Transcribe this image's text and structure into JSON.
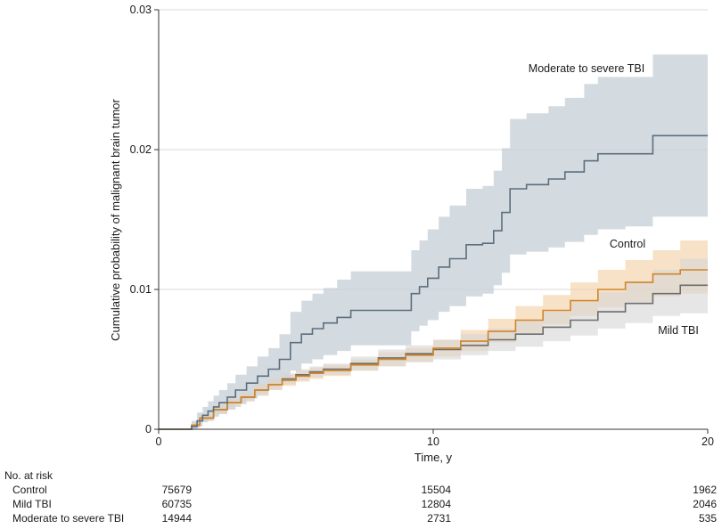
{
  "chart_data": {
    "type": "line",
    "title": "",
    "xlabel": "Time, y",
    "ylabel": "Cumulative probability of malignant brain tumor",
    "xlim": [
      0,
      20
    ],
    "ylim": [
      0,
      0.03
    ],
    "xticks": [
      0,
      10,
      20
    ],
    "xtick_labels": [
      "0",
      "10",
      "20"
    ],
    "yticks": [
      0,
      0.01,
      0.02,
      0.03
    ],
    "ytick_labels": [
      "0",
      "0.01",
      "0.02",
      "0.03"
    ],
    "grid": "horizontal",
    "legend": "direct labels",
    "series": [
      {
        "name": "Moderate to severe TBI",
        "color": "#5b6e7c",
        "band_color": "#c6cfd5",
        "x": [
          0,
          1,
          1.2,
          1.4,
          1.6,
          1.8,
          2.0,
          2.2,
          2.5,
          2.8,
          3.2,
          3.6,
          4.0,
          4.4,
          4.8,
          5.2,
          5.6,
          6.0,
          6.5,
          7.0,
          8.0,
          9.2,
          9.5,
          9.8,
          10.2,
          10.6,
          11.2,
          11.8,
          12.2,
          12.5,
          12.8,
          13.4,
          14.2,
          14.8,
          15.5,
          16.0,
          17.0,
          18.0,
          19.0,
          20
        ],
        "y": [
          0,
          0,
          0.0002,
          0.0006,
          0.001,
          0.0013,
          0.0016,
          0.0019,
          0.0023,
          0.0028,
          0.0033,
          0.0038,
          0.0043,
          0.005,
          0.0062,
          0.0068,
          0.0072,
          0.0076,
          0.008,
          0.0085,
          0.0085,
          0.0097,
          0.0102,
          0.0108,
          0.0116,
          0.0122,
          0.0132,
          0.0133,
          0.0142,
          0.0155,
          0.0172,
          0.0175,
          0.0179,
          0.0184,
          0.0192,
          0.0197,
          0.0197,
          0.021,
          0.021,
          0.021
        ],
        "lower": [
          0,
          0,
          0,
          0.0002,
          0.0005,
          0.0007,
          0.0009,
          0.0011,
          0.0014,
          0.0018,
          0.0022,
          0.0026,
          0.003,
          0.0034,
          0.0042,
          0.0047,
          0.005,
          0.0053,
          0.0056,
          0.006,
          0.006,
          0.007,
          0.0074,
          0.0078,
          0.0084,
          0.0088,
          0.0095,
          0.0097,
          0.0103,
          0.0112,
          0.0125,
          0.0127,
          0.013,
          0.0134,
          0.0139,
          0.0143,
          0.0145,
          0.0152,
          0.0152,
          0.0152
        ],
        "upper": [
          0,
          0,
          0.0006,
          0.0012,
          0.0016,
          0.002,
          0.0024,
          0.0028,
          0.0033,
          0.0039,
          0.0045,
          0.0052,
          0.0058,
          0.0068,
          0.0084,
          0.0092,
          0.0097,
          0.0101,
          0.0107,
          0.0113,
          0.0113,
          0.0128,
          0.0135,
          0.0143,
          0.0152,
          0.016,
          0.0172,
          0.0174,
          0.0185,
          0.0201,
          0.0222,
          0.0226,
          0.0231,
          0.0237,
          0.0247,
          0.0252,
          0.0252,
          0.0268,
          0.0268,
          0.0268
        ]
      },
      {
        "name": "Control",
        "color": "#d2852a",
        "band_color": "#f3cfa2",
        "x": [
          0,
          1,
          1.2,
          1.5,
          2.0,
          2.5,
          3.0,
          3.5,
          4.0,
          4.5,
          5.0,
          5.5,
          6.0,
          7.0,
          8.0,
          9.0,
          10.0,
          11.0,
          12.0,
          13.0,
          14.0,
          15.0,
          16.0,
          17.0,
          18.0,
          19.0,
          20
        ],
        "y": [
          0,
          0,
          0.0003,
          0.0008,
          0.0014,
          0.0019,
          0.0023,
          0.0028,
          0.0032,
          0.0035,
          0.0038,
          0.004,
          0.0042,
          0.0046,
          0.005,
          0.0053,
          0.0058,
          0.0063,
          0.007,
          0.0078,
          0.0085,
          0.0092,
          0.01,
          0.0105,
          0.0111,
          0.0114,
          0.0114
        ],
        "lower": [
          0,
          0,
          0.0001,
          0.0006,
          0.0011,
          0.0016,
          0.002,
          0.0024,
          0.0028,
          0.0031,
          0.0034,
          0.0036,
          0.0038,
          0.0042,
          0.0045,
          0.0048,
          0.0052,
          0.0056,
          0.0062,
          0.0069,
          0.0075,
          0.0081,
          0.0087,
          0.0091,
          0.0095,
          0.0097,
          0.0097
        ],
        "upper": [
          0,
          0,
          0.0005,
          0.001,
          0.0017,
          0.0022,
          0.0026,
          0.0032,
          0.0036,
          0.0039,
          0.0042,
          0.0044,
          0.0046,
          0.005,
          0.0055,
          0.0058,
          0.0064,
          0.0071,
          0.0079,
          0.0088,
          0.0096,
          0.0105,
          0.0114,
          0.0121,
          0.0128,
          0.0135,
          0.0135
        ]
      },
      {
        "name": "Mild TBI",
        "color": "#6d6d6d",
        "band_color": "#d6d6d6",
        "x": [
          0,
          1,
          1.2,
          1.5,
          2.0,
          2.5,
          3.0,
          3.5,
          4.0,
          4.5,
          5.0,
          5.5,
          6.0,
          7.0,
          8.0,
          9.0,
          10.0,
          11.0,
          12.0,
          13.0,
          14.0,
          15.0,
          16.0,
          17.0,
          18.0,
          19.0,
          20
        ],
        "y": [
          0,
          0,
          0.0003,
          0.0008,
          0.0014,
          0.0019,
          0.0023,
          0.0028,
          0.0032,
          0.0036,
          0.0039,
          0.0041,
          0.0043,
          0.0047,
          0.0051,
          0.0054,
          0.0057,
          0.006,
          0.0064,
          0.0068,
          0.0073,
          0.0078,
          0.0084,
          0.009,
          0.0097,
          0.0103,
          0.0103
        ],
        "lower": [
          0,
          0,
          0.0001,
          0.0006,
          0.0011,
          0.0016,
          0.002,
          0.0024,
          0.0028,
          0.0032,
          0.0035,
          0.0037,
          0.0039,
          0.0042,
          0.0045,
          0.0048,
          0.005,
          0.0053,
          0.0056,
          0.0059,
          0.0063,
          0.0067,
          0.0072,
          0.0076,
          0.0081,
          0.0083,
          0.0083
        ],
        "upper": [
          0,
          0,
          0.0005,
          0.001,
          0.0017,
          0.0022,
          0.0026,
          0.0032,
          0.0036,
          0.004,
          0.0043,
          0.0045,
          0.0047,
          0.0052,
          0.0057,
          0.006,
          0.0064,
          0.0068,
          0.0072,
          0.0078,
          0.0084,
          0.0091,
          0.0098,
          0.0106,
          0.0114,
          0.0122,
          0.0122
        ]
      }
    ],
    "annotations": [
      {
        "text": "Moderate to severe TBI",
        "series": "Moderate to severe TBI"
      },
      {
        "text": "Control",
        "series": "Control"
      },
      {
        "text": "Mild TBI",
        "series": "Mild TBI"
      }
    ],
    "risk_table": {
      "title": "No. at risk",
      "timepoints": [
        "0",
        "10",
        "20"
      ],
      "rows": [
        {
          "name": "Control",
          "values": [
            "75679",
            "15504",
            "1962"
          ]
        },
        {
          "name": "Mild TBI",
          "values": [
            "60735",
            "12804",
            "2046"
          ]
        },
        {
          "name": "Moderate to severe TBI",
          "values": [
            "14944",
            "2731",
            "535"
          ]
        }
      ]
    }
  }
}
